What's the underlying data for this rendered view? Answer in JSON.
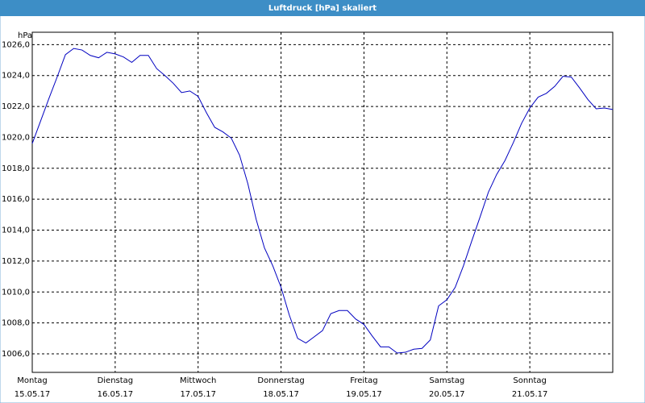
{
  "chart_data": {
    "type": "line",
    "title": "Luftdruck [hPa] skaliert",
    "y_label": "hPa",
    "xlim": [
      0,
      7
    ],
    "xticks": [
      {
        "value": 0,
        "label": "Montag"
      },
      {
        "value": 1,
        "label": "Dienstag"
      },
      {
        "value": 2,
        "label": "Mittwoch"
      },
      {
        "value": 3,
        "label": "Donnerstag"
      },
      {
        "value": 4,
        "label": "Freitag"
      },
      {
        "value": 5,
        "label": "Samstag"
      },
      {
        "value": 6,
        "label": "Sonntag"
      }
    ],
    "xtick_dates": [
      "15.05.17",
      "16.05.17",
      "17.05.17",
      "18.05.17",
      "19.05.17",
      "20.05.17",
      "21.05.17"
    ],
    "ylim": [
      1004.8,
      1026.8
    ],
    "yticks": [
      {
        "value": 1006,
        "label": "1006,0"
      },
      {
        "value": 1008,
        "label": "1008,0"
      },
      {
        "value": 1010,
        "label": "1010,0"
      },
      {
        "value": 1012,
        "label": "1012,0"
      },
      {
        "value": 1014,
        "label": "1014,0"
      },
      {
        "value": 1016,
        "label": "1016,0"
      },
      {
        "value": 1018,
        "label": "1018,0"
      },
      {
        "value": 1020,
        "label": "1020,0"
      },
      {
        "value": 1022,
        "label": "1022,0"
      },
      {
        "value": 1024,
        "label": "1024,0"
      },
      {
        "value": 1026,
        "label": "1026,0"
      }
    ],
    "grid": true,
    "x": [
      0,
      0.1,
      0.2,
      0.3,
      0.4,
      0.5,
      0.6,
      0.7,
      0.8,
      0.9,
      1.0,
      1.1,
      1.2,
      1.3,
      1.4,
      1.5,
      1.6,
      1.7,
      1.8,
      1.9,
      2.0,
      2.1,
      2.2,
      2.3,
      2.4,
      2.5,
      2.6,
      2.7,
      2.8,
      2.9,
      3.0,
      3.1,
      3.2,
      3.3,
      3.4,
      3.5,
      3.6,
      3.7,
      3.8,
      3.9,
      4.0,
      4.1,
      4.2,
      4.3,
      4.4,
      4.5,
      4.6,
      4.7,
      4.8,
      4.9,
      5.0,
      5.1,
      5.2,
      5.3,
      5.4,
      5.5,
      5.6,
      5.7,
      5.8,
      5.9,
      6.0,
      6.1,
      6.2,
      6.3,
      6.4,
      6.5,
      6.6,
      6.7,
      6.8,
      6.9,
      7.0
    ],
    "series": [
      {
        "color": "#0000c0",
        "values": [
          1019.6,
          1021.05,
          1022.5,
          1023.9,
          1025.35,
          1025.75,
          1025.65,
          1025.3,
          1025.15,
          1025.5,
          1025.4,
          1025.2,
          1024.85,
          1025.3,
          1025.3,
          1024.45,
          1024.0,
          1023.5,
          1022.9,
          1023.0,
          1022.65,
          1021.6,
          1020.65,
          1020.35,
          1019.95,
          1018.85,
          1017.0,
          1014.7,
          1012.85,
          1011.7,
          1010.3,
          1008.5,
          1007.0,
          1006.7,
          1007.1,
          1007.5,
          1008.6,
          1008.8,
          1008.8,
          1008.25,
          1007.9,
          1007.15,
          1006.45,
          1006.45,
          1006.05,
          1006.1,
          1006.3,
          1006.35,
          1006.9,
          1009.1,
          1009.5,
          1010.3,
          1011.7,
          1013.3,
          1014.85,
          1016.45,
          1017.6,
          1018.5,
          1019.65,
          1020.9,
          1021.9,
          1022.6,
          1022.85,
          1023.3,
          1023.95,
          1023.9,
          1023.2,
          1022.45,
          1021.85,
          1021.9,
          1021.8
        ]
      }
    ]
  }
}
